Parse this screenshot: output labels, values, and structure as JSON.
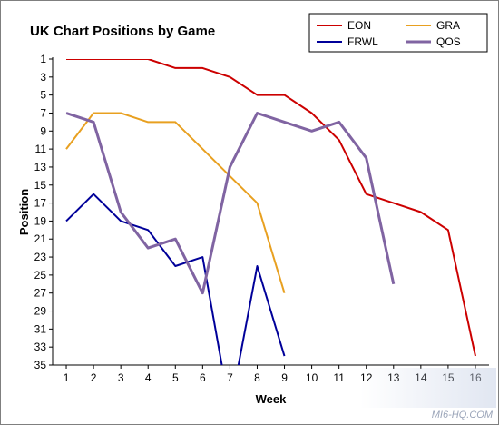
{
  "chart_data": {
    "type": "line",
    "title": "UK Chart Positions by Game",
    "xlabel": "Week",
    "ylabel": "Position",
    "x": [
      1,
      2,
      3,
      4,
      5,
      6,
      7,
      8,
      9,
      10,
      11,
      12,
      13,
      14,
      15,
      16
    ],
    "yticks": [
      1,
      3,
      5,
      7,
      9,
      11,
      13,
      15,
      17,
      19,
      21,
      23,
      25,
      27,
      29,
      31,
      33,
      35
    ],
    "ylim": [
      1,
      35
    ],
    "y_inverted": true,
    "grid": false,
    "legend_position": "top-right",
    "series": [
      {
        "name": "EON",
        "color": "#cc0000",
        "values": [
          1,
          1,
          1,
          1,
          2,
          2,
          3,
          5,
          5,
          7,
          10,
          16,
          17,
          18,
          20,
          34
        ]
      },
      {
        "name": "GRA",
        "color": "#e8a020",
        "values": [
          11,
          7,
          7,
          8,
          8,
          11,
          14,
          17,
          27,
          null,
          null,
          null,
          null,
          null,
          null,
          null
        ]
      },
      {
        "name": "FRWL",
        "color": "#000099",
        "values": [
          19,
          16,
          19,
          20,
          24,
          23,
          40,
          24,
          34,
          null,
          null,
          null,
          null,
          null,
          null,
          null
        ]
      },
      {
        "name": "QOS",
        "color": "#8064a2",
        "values": [
          7,
          8,
          18,
          22,
          21,
          27,
          13,
          7,
          8,
          9,
          8,
          12,
          26,
          null,
          null,
          null
        ]
      }
    ]
  },
  "watermark": "MI6-HQ.COM"
}
